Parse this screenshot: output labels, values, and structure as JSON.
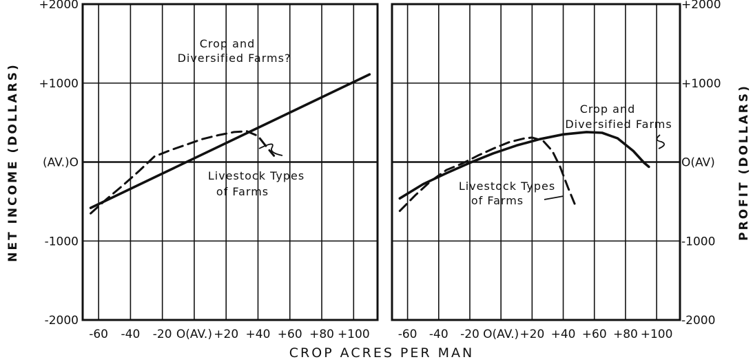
{
  "chart_data": [
    {
      "type": "line",
      "panel": "left",
      "xlabel": "CROP ACRES PER MAN",
      "ylabel": "NET INCOME (DOLLARS)",
      "xlim": [
        -70,
        115
      ],
      "ylim": [
        -2000,
        2000
      ],
      "x_ticks": [
        -60,
        -40,
        -20,
        0,
        20,
        40,
        60,
        80,
        100
      ],
      "x_tick_labels": [
        "-60",
        "-40",
        "-20",
        "O(AV.)",
        "+20",
        "+40",
        "+60",
        "+80",
        "+100"
      ],
      "y_ticks": [
        -2000,
        -1000,
        0,
        1000,
        2000
      ],
      "y_tick_labels": [
        "-2000",
        "-1000",
        "(AV.)O",
        "+1000",
        "+2000"
      ],
      "grid": true,
      "series": [
        {
          "name": "Crop and Diversified Farms",
          "style": "solid",
          "x": [
            -65,
            110
          ],
          "y": [
            -580,
            1110
          ]
        },
        {
          "name": "Livestock Types of Farms",
          "style": "dashed",
          "x": [
            -65,
            -55,
            -45,
            -35,
            -25,
            -15,
            -5,
            5,
            15,
            25,
            33,
            40,
            45,
            50
          ],
          "y": [
            -650,
            -470,
            -300,
            -120,
            70,
            150,
            220,
            290,
            340,
            380,
            390,
            330,
            200,
            80
          ]
        }
      ],
      "annotations": [
        {
          "text": [
            "Crop and",
            "Diversified Farms?"
          ]
        },
        {
          "text": [
            "Livestock Types",
            "of Farms"
          ]
        }
      ]
    },
    {
      "type": "line",
      "panel": "right",
      "xlabel": "CROP ACRES PER MAN",
      "ylabel": "PROFIT (DOLLARS)",
      "xlim": [
        -70,
        115
      ],
      "ylim": [
        -2000,
        2000
      ],
      "x_ticks": [
        -60,
        -40,
        -20,
        0,
        20,
        40,
        60,
        80,
        100
      ],
      "x_tick_labels": [
        "-60",
        "-40",
        "-20",
        "O(AV.)",
        "+20",
        "+40",
        "+60",
        "+80",
        "+100"
      ],
      "y_ticks": [
        -2000,
        -1000,
        0,
        1000,
        2000
      ],
      "y_tick_labels": [
        "-2000",
        "-1000",
        "O(AV)",
        "+1000",
        "+2000"
      ],
      "grid": true,
      "series": [
        {
          "name": "Crop and Diversified Farms",
          "style": "solid",
          "x": [
            -65,
            -50,
            -35,
            -20,
            -5,
            10,
            25,
            40,
            55,
            65,
            75,
            85,
            92,
            95
          ],
          "y": [
            -460,
            -280,
            -140,
            -10,
            110,
            210,
            290,
            350,
            380,
            370,
            300,
            140,
            -10,
            -60
          ]
        },
        {
          "name": "Livestock Types of Farms",
          "style": "dashed",
          "x": [
            -65,
            -55,
            -45,
            -35,
            -25,
            -15,
            -5,
            5,
            15,
            20,
            27,
            33,
            38,
            43,
            48
          ],
          "y": [
            -620,
            -420,
            -240,
            -100,
            -20,
            80,
            170,
            250,
            300,
            310,
            270,
            140,
            -60,
            -320,
            -560
          ]
        }
      ],
      "annotations": [
        {
          "text": [
            "Crop and",
            "Diversified Farms"
          ]
        },
        {
          "text": [
            "Livestock Types",
            "of Farms"
          ]
        }
      ]
    }
  ]
}
